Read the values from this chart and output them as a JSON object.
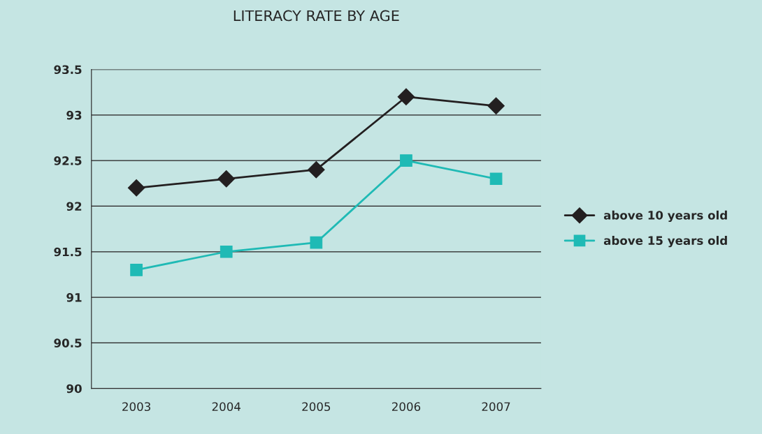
{
  "chart_data": {
    "type": "line",
    "title": "LITERACY RATE BY AGE",
    "categories": [
      "2003",
      "2004",
      "2005",
      "2006",
      "2007"
    ],
    "series": [
      {
        "name": "above 10 years old",
        "color": "#231f20",
        "marker": "diamond",
        "values": [
          92.2,
          92.3,
          92.4,
          93.2,
          93.1
        ]
      },
      {
        "name": "above 15 years old",
        "color": "#1fbab5",
        "marker": "square",
        "values": [
          91.3,
          91.5,
          91.6,
          92.5,
          92.3
        ]
      }
    ],
    "ylim": [
      90,
      93.5
    ],
    "yticks": [
      90,
      90.5,
      91,
      91.5,
      92,
      92.5,
      93,
      93.5
    ],
    "grid": "y",
    "legend": "right",
    "line_style": "solid"
  }
}
